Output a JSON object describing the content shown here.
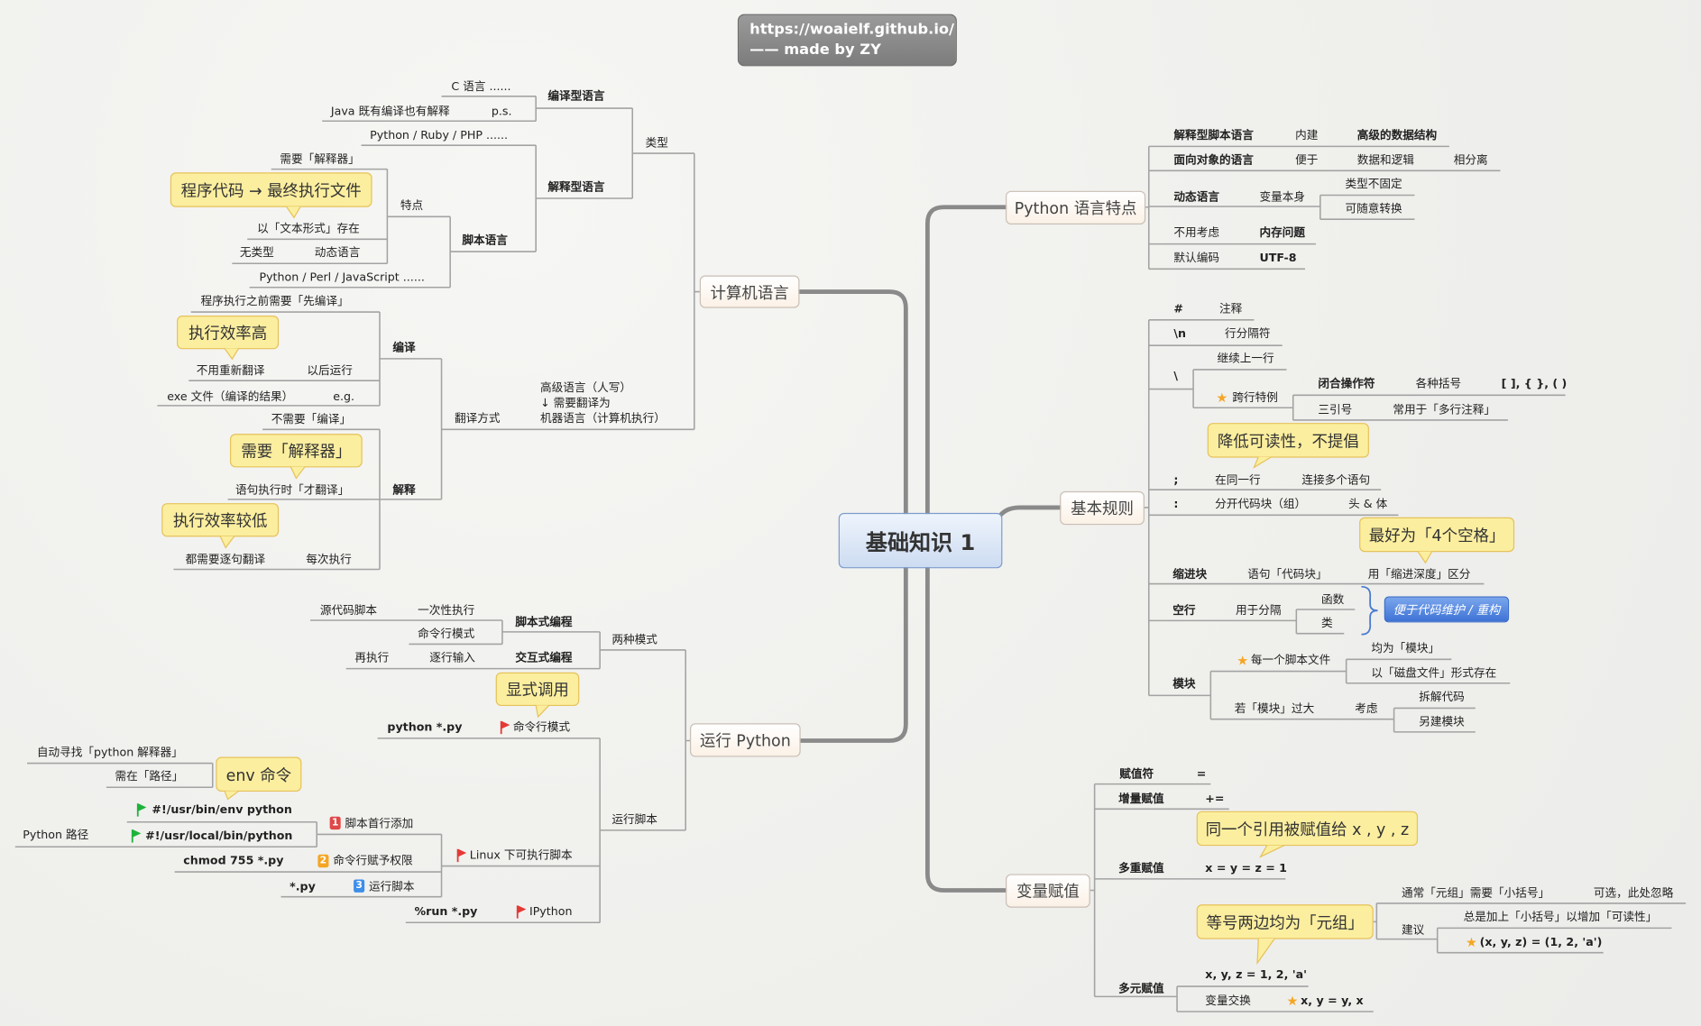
{
  "header": {
    "url": "https://woaielf.github.io/",
    "credit": "—— made by ZY"
  },
  "root": "基础知识 1",
  "colors": {
    "callout_bg": "#fbee9f",
    "root_bg": "#cddcf2",
    "button": "#3e73d6",
    "flag_red": "#e53935",
    "flag_green": "#1db33a",
    "star": "#f5a623",
    "badge1": "#e04848",
    "badge2": "#f5a623",
    "badge3": "#3d8ee8"
  },
  "computer_language": {
    "title": "计算机语言",
    "type": "类型",
    "compiled": "编译型语言",
    "c": "C 语言 ......",
    "java": "Java 既有编译也有解释",
    "ps": "p.s.",
    "interpreted": "解释型语言",
    "prp": "Python / Ruby / PHP ......",
    "script": "脚本语言",
    "features": "特点",
    "needs_interp": "需要「解释器」",
    "callout_exec": "程序代码 → 最终执行文件",
    "text_form": "以「文本形式」存在",
    "untyped": "无类型",
    "dynamic": "动态语言",
    "ppj": "Python / Perl / JavaScript ......",
    "translation": "翻译方式",
    "translation_note": [
      "高级语言（人写）",
      "↓  需要翻译为",
      "机器语言（计算机执行）"
    ],
    "compile": "编译",
    "compile_first": "程序执行之前需要「先编译」",
    "callout_fast": "执行效率高",
    "no_retranslate": "不用重新翻译",
    "run_later": "以后运行",
    "exe": "exe 文件（编译的结果）",
    "eg": "e.g.",
    "interpret": "解释",
    "no_compile": "不需要「编译」",
    "callout_interp": "需要「解释器」",
    "translate_on_exec": "语句执行时「才翻译」",
    "callout_slow": "执行效率较低",
    "translate_each": "都需要逐句翻译",
    "every_time": "每次执行"
  },
  "run_python": {
    "title": "运行 Python",
    "two_modes": "两种模式",
    "script_prog": "脚本式编程",
    "source_script": "源代码脚本",
    "run_once": "一次性执行",
    "cmd_mode": "命令行模式",
    "interactive": "交互式编程",
    "line_input": "逐行输入",
    "then_exec": "再执行",
    "callout_explicit": "显式调用",
    "python_py": "python *.py",
    "cmd_mode2": "命令行模式",
    "run_script": "运行脚本",
    "auto_find": "自动寻找「python 解释器」",
    "need_path": "需在「路径」",
    "callout_env": "env 命令",
    "shebang_env": "#!/usr/bin/env python",
    "python_path": "Python 路径",
    "shebang_local": "#!/usr/local/bin/python",
    "badges": [
      "1",
      "2",
      "3"
    ],
    "step1": "脚本首行添加",
    "step2": "命令行赋予权限",
    "step3": "运行脚本",
    "chmod": "chmod 755 *.py",
    "star_py": "*.py",
    "linux": "Linux 下可执行脚本",
    "run_py": "%run *.py",
    "ipython": "IPython"
  },
  "python_features": {
    "title": "Python 语言特点",
    "r1": [
      "解释型脚本语言",
      "内建",
      "高级的数据结构"
    ],
    "r2": [
      "面向对象的语言",
      "便于",
      "数据和逻辑",
      "相分离"
    ],
    "r3": [
      "动态语言",
      "变量本身",
      "类型不固定",
      "可随意转换"
    ],
    "r4": [
      "不用考虑",
      "内存问题"
    ],
    "r5": [
      "默认编码",
      "UTF-8"
    ]
  },
  "basic_rules": {
    "title": "基本规则",
    "hash": [
      "#",
      "注释"
    ],
    "newline": [
      "\\n",
      "行分隔符"
    ],
    "backslash": "\\",
    "continue": "继续上一行",
    "exception": "跨行特例",
    "closing": [
      "闭合操作符",
      "各种括号",
      "[ ], { }, ( )"
    ],
    "triple": [
      "三引号",
      "常用于「多行注释」"
    ],
    "callout_readability": "降低可读性，不提倡",
    "semicolon": [
      ";",
      "在同一行",
      "连接多个语句"
    ],
    "colon": [
      ":",
      "分开代码块（组）",
      "头 & 体"
    ],
    "callout_spaces": "最好为「4个空格」",
    "indent": [
      "缩进块",
      "语句「代码块」",
      "用「缩进深度」区分"
    ],
    "blank": [
      "空行",
      "用于分隔",
      "函数",
      "类"
    ],
    "maintain_button": "便于代码维护 / 重构",
    "module": "模块",
    "each_file": "每一个脚本文件",
    "all_modules": "均为「模块」",
    "disk_file": "以「磁盘文件」形式存在",
    "too_big": "若「模块」过大",
    "consider": "考虑",
    "split": "拆解代码",
    "new_module": "另建模块"
  },
  "assignment": {
    "title": "变量赋值",
    "op": [
      "赋值符",
      "="
    ],
    "aug": [
      "增量赋值",
      "+="
    ],
    "callout_same_ref": "同一个引用被赋值给 x , y , z",
    "multi": [
      "多重赋值",
      "x = y = z = 1"
    ],
    "tuple_note": [
      "通常「元组」需要「小括号」",
      "可选，此处忽略"
    ],
    "suggest": "建议",
    "always_paren": "总是加上「小括号」以增加「可读性」",
    "tuple_example": "(x, y, z) = (1, 2, 'a')",
    "callout_tuple": "等号两边均为「元组」",
    "multi_target": "多元赋值",
    "xyz": "x, y, z = 1, 2, 'a'",
    "swap": "变量交换",
    "swap_example": "x, y = y, x"
  }
}
